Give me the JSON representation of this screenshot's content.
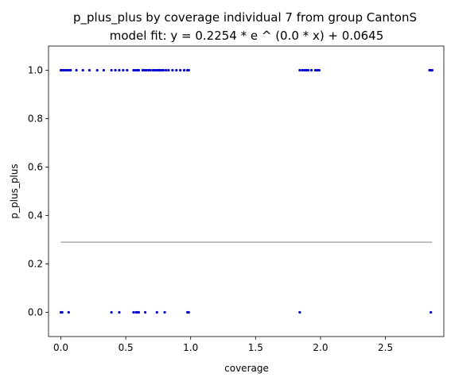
{
  "chart_data": {
    "type": "scatter",
    "title": "p_plus_plus by coverage individual 7 from group CantonS",
    "subtitle": "model fit: y = 0.2254 * e ^ (0.0 * x) + 0.0645",
    "xlabel": "coverage",
    "ylabel": "p_plus_plus",
    "xlim": [
      -0.095,
      2.95
    ],
    "ylim": [
      -0.1,
      1.1
    ],
    "x_ticks": [
      0.0,
      0.5,
      1.0,
      1.5,
      2.0,
      2.5
    ],
    "x_tick_labels": [
      "0.0",
      "0.5",
      "1.0",
      "1.5",
      "2.0",
      "2.5"
    ],
    "y_ticks": [
      0.0,
      0.2,
      0.4,
      0.6,
      0.8,
      1.0
    ],
    "y_tick_labels": [
      "0.0",
      "0.2",
      "0.4",
      "0.6",
      "0.8",
      "1.0"
    ],
    "grid": false,
    "point_color": "#0000cc",
    "fit_color": "#aaaaaa",
    "series": [
      {
        "points": [
          [
            0.0,
            1.0
          ],
          [
            0.01,
            1.0
          ],
          [
            0.02,
            1.0
          ],
          [
            0.03,
            1.0
          ],
          [
            0.045,
            1.0
          ],
          [
            0.06,
            1.0
          ],
          [
            0.075,
            1.0
          ],
          [
            0.12,
            1.0
          ],
          [
            0.17,
            1.0
          ],
          [
            0.22,
            1.0
          ],
          [
            0.28,
            1.0
          ],
          [
            0.33,
            1.0
          ],
          [
            0.39,
            1.0
          ],
          [
            0.42,
            1.0
          ],
          [
            0.45,
            1.0
          ],
          [
            0.48,
            1.0
          ],
          [
            0.51,
            1.0
          ],
          [
            0.56,
            1.0
          ],
          [
            0.575,
            1.0
          ],
          [
            0.59,
            1.0
          ],
          [
            0.6,
            1.0
          ],
          [
            0.63,
            1.0
          ],
          [
            0.645,
            1.0
          ],
          [
            0.66,
            1.0
          ],
          [
            0.675,
            1.0
          ],
          [
            0.69,
            1.0
          ],
          [
            0.71,
            1.0
          ],
          [
            0.72,
            1.0
          ],
          [
            0.735,
            1.0
          ],
          [
            0.75,
            1.0
          ],
          [
            0.76,
            1.0
          ],
          [
            0.775,
            1.0
          ],
          [
            0.79,
            1.0
          ],
          [
            0.81,
            1.0
          ],
          [
            0.83,
            1.0
          ],
          [
            0.86,
            1.0
          ],
          [
            0.89,
            1.0
          ],
          [
            0.92,
            1.0
          ],
          [
            0.95,
            1.0
          ],
          [
            0.975,
            1.0
          ],
          [
            0.985,
            1.0
          ],
          [
            1.84,
            1.0
          ],
          [
            1.86,
            1.0
          ],
          [
            1.875,
            1.0
          ],
          [
            1.89,
            1.0
          ],
          [
            1.905,
            1.0
          ],
          [
            1.93,
            1.0
          ],
          [
            1.96,
            1.0
          ],
          [
            1.975,
            1.0
          ],
          [
            1.99,
            1.0
          ],
          [
            2.84,
            1.0
          ],
          [
            2.85,
            1.0
          ],
          [
            2.86,
            1.0
          ],
          [
            0.0,
            0.0
          ],
          [
            0.01,
            0.0
          ],
          [
            0.06,
            0.0
          ],
          [
            0.39,
            0.0
          ],
          [
            0.45,
            0.0
          ],
          [
            0.56,
            0.0
          ],
          [
            0.58,
            0.0
          ],
          [
            0.59,
            0.0
          ],
          [
            0.6,
            0.0
          ],
          [
            0.65,
            0.0
          ],
          [
            0.74,
            0.0
          ],
          [
            0.8,
            0.0
          ],
          [
            0.975,
            0.0
          ],
          [
            0.985,
            0.0
          ],
          [
            1.84,
            0.0
          ],
          [
            2.85,
            0.0
          ]
        ]
      }
    ],
    "fit": {
      "a": 0.2254,
      "b": 0.0,
      "c": 0.0645,
      "x_range": [
        0.0,
        2.86
      ]
    }
  }
}
